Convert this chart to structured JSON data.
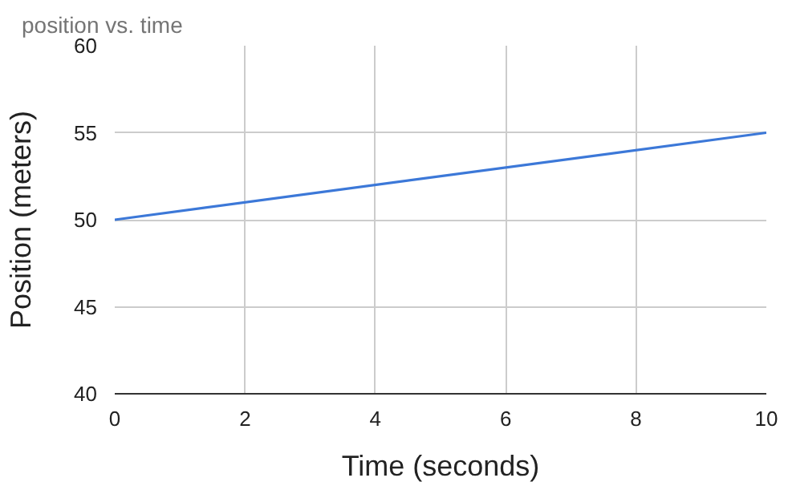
{
  "chart_data": {
    "type": "line",
    "title": "position vs. time",
    "xlabel": "Time (seconds)",
    "ylabel": "Position (meters)",
    "x": [
      0,
      10
    ],
    "series": [
      {
        "color": "#3c78d8",
        "values": [
          50,
          55
        ]
      }
    ],
    "xlim": [
      0,
      10
    ],
    "xticks": [
      0,
      2,
      4,
      6,
      8,
      10
    ],
    "ylim": [
      40,
      60
    ],
    "yticks": [
      40,
      45,
      50,
      55,
      60
    ],
    "grid": true,
    "marker": "none",
    "line_style": "solid"
  }
}
